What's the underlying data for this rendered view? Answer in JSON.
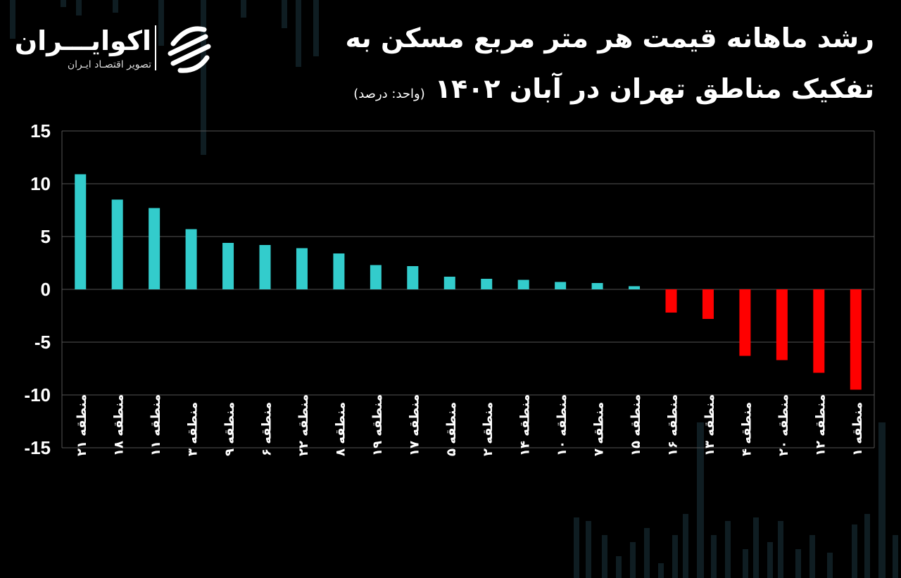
{
  "title_line1": "رشد ماهانه قیمت هر متر مربع مسکن به",
  "title_line2": "تفکیک مناطق تهران در آبان ۱۴۰۲",
  "unit_label": "(واحد: درصد)",
  "logo": {
    "name": "اکوایـــران",
    "tagline": "تصویر اقتصـاد ایـران",
    "icon": "ecoiran-logo-icon"
  },
  "colors": {
    "positive": "#33CCCC",
    "negative": "#FF0000",
    "background": "#000000",
    "grid": "#555555"
  },
  "chart_data": {
    "type": "bar",
    "categories": [
      "منطقه ۲۱",
      "منطقه ۱۸",
      "منطقه ۱۱",
      "منطقه ۳",
      "منطقه ۹",
      "منطقه ۶",
      "منطقه ۲۲",
      "منطقه ۸",
      "منطقه ۱۹",
      "منطقه ۱۷",
      "منطقه ۵",
      "منطقه ۲",
      "منطقه ۱۴",
      "منطقه ۱۰",
      "منطقه ۷",
      "منطقه ۱۵",
      "منطقه ۱۶",
      "منطقه ۱۳",
      "منطقه ۴",
      "منطقه ۲۰",
      "منطقه ۱۲",
      "منطقه ۱"
    ],
    "values": [
      10.9,
      8.5,
      7.7,
      5.7,
      4.4,
      4.2,
      3.9,
      3.4,
      2.3,
      2.2,
      1.2,
      1.0,
      0.9,
      0.7,
      0.6,
      0.3,
      -2.2,
      -2.8,
      -6.3,
      -6.7,
      -7.9,
      -9.5
    ],
    "ylim": [
      -15,
      15
    ],
    "yticks": [
      15,
      10,
      5,
      0,
      -5,
      -10,
      -15
    ],
    "ytick_labels": [
      "15",
      "10",
      "5",
      "0",
      "-5",
      "-10",
      "-15"
    ],
    "grid": true,
    "xlabel": "",
    "ylabel": ""
  }
}
